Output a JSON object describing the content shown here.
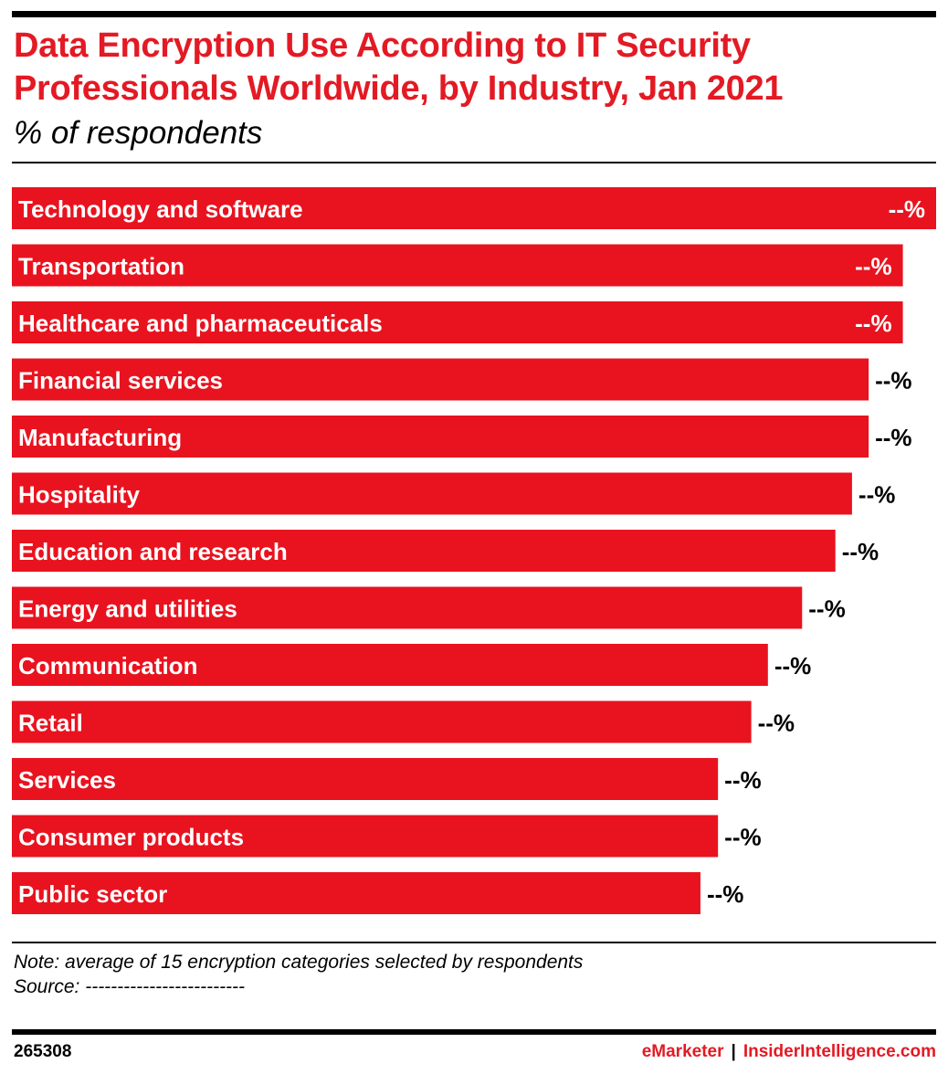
{
  "title": "Data Encryption Use According to IT Security Professionals Worldwide, by Industry, Jan 2021",
  "subtitle": "% of respondents",
  "chart_data": {
    "type": "bar",
    "orientation": "horizontal",
    "categories": [
      "Technology and software",
      "Transportation",
      "Healthcare and pharmaceuticals",
      "Financial services",
      "Manufacturing",
      "Hospitality",
      "Education and research",
      "Energy and utilities",
      "Communication",
      "Retail",
      "Services",
      "Consumer products",
      "Public sector"
    ],
    "relative_values": [
      1.0,
      0.964,
      0.964,
      0.927,
      0.927,
      0.909,
      0.891,
      0.855,
      0.818,
      0.8,
      0.764,
      0.764,
      0.745
    ],
    "value_labels": [
      "--%",
      "--%",
      "--%",
      "--%",
      "--%",
      "--%",
      "--%",
      "--%",
      "--%",
      "--%",
      "--%",
      "--%",
      "--%"
    ],
    "bar_color": "#e8131f",
    "grid": false,
    "legend": "none"
  },
  "note": "Note: average of 15 encryption categories selected by respondents",
  "source": "Source: -------------------------",
  "chart_id": "265308",
  "brand": {
    "emarketer": "eMarketer",
    "separator": "|",
    "insider": "InsiderIntelligence.com"
  },
  "colors": {
    "accent": "#e31a24",
    "bar": "#e8131f",
    "text": "#000000"
  }
}
